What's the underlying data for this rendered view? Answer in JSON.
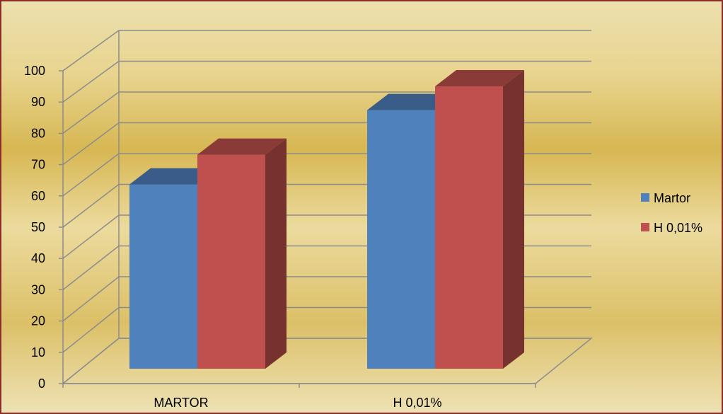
{
  "chart_data": {
    "type": "bar",
    "categories": [
      "MARTOR",
      "H 0,01%"
    ],
    "series": [
      {
        "name": "Martor",
        "values": [
          62,
          87
        ],
        "color": "#4F81BD"
      },
      {
        "name": "H 0,01%",
        "values": [
          72,
          95
        ],
        "color": "#C0504D"
      }
    ],
    "ylim": [
      0,
      100
    ],
    "yticks": [
      0,
      10,
      20,
      30,
      40,
      50,
      60,
      70,
      80,
      90,
      100
    ],
    "grid": true,
    "legend": "right",
    "style": "3d-clustered-column",
    "background": "gold-gradient"
  }
}
